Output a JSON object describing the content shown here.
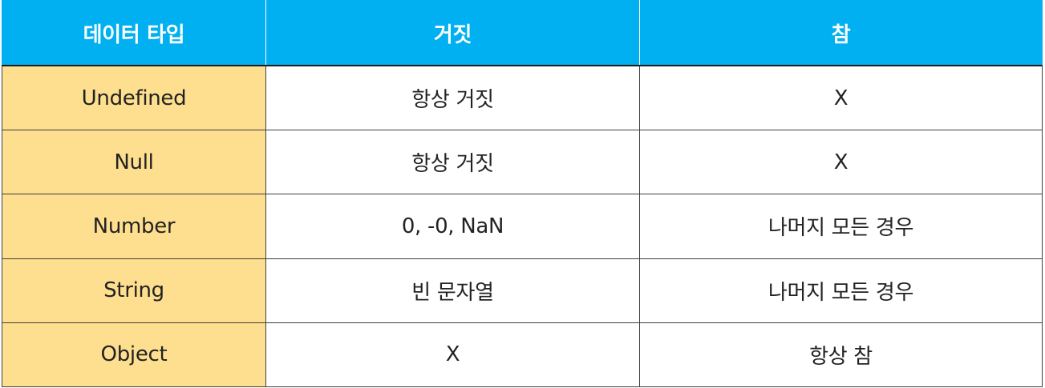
{
  "table": {
    "headers": [
      "데이터 타입",
      "거짓",
      "참"
    ],
    "rows": [
      [
        "Undefined",
        "항상 거짓",
        "X"
      ],
      [
        "Null",
        "항상 거짓",
        "X"
      ],
      [
        "Number",
        "0, -0, NaN",
        "나머지 모든 경우"
      ],
      [
        "String",
        "빈 문자열",
        "나머지 모든 경우"
      ],
      [
        "Object",
        "X",
        "항상 참"
      ]
    ]
  },
  "colors": {
    "header_bg": "#00b0f0",
    "header_text": "#ffffff",
    "type_column_bg": "#fedf8f",
    "border": "#3f3f3f",
    "body_text": "#222222"
  }
}
